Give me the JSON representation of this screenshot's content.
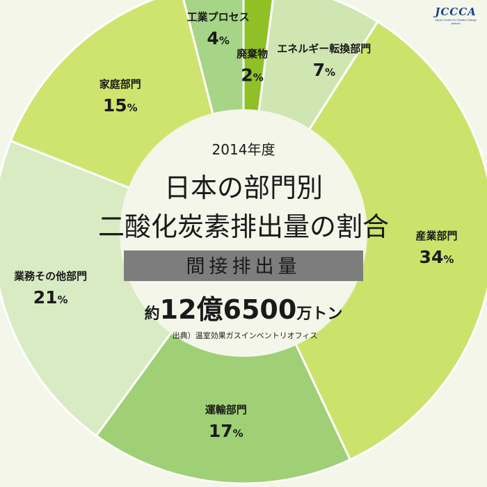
{
  "logo": {
    "mark": "JCCCA",
    "subtitle": "Japan Center for Climate Change Actions"
  },
  "center": {
    "year": "2014年度",
    "title_line1": "日本の部門別",
    "title_line2": "二酸化炭素排出量の割合",
    "band_label": "間接排出量",
    "total_prefix": "約",
    "total_value": "12億6500",
    "total_unit": "万トン",
    "source": "出典）温室効果ガスインベントリオフィス"
  },
  "colors": {
    "background": "#f3f6e9",
    "band": "#7d7d7d",
    "band_text": "#ffffff",
    "separator": "#ffffff"
  },
  "chart_data": {
    "type": "pie",
    "variant": "donut",
    "start": "12 o'clock",
    "direction": "clockwise",
    "unit": "%",
    "slices": [
      {
        "label": "廃棄物",
        "value": 2,
        "color": "#8fc126"
      },
      {
        "label": "エネルギー転換部門",
        "value": 7,
        "color": "#cfe6b2"
      },
      {
        "label": "産業部門",
        "value": 34,
        "color": "#cbe36b"
      },
      {
        "label": "運輸部門",
        "value": 17,
        "color": "#9fd075"
      },
      {
        "label": "業務その他部門",
        "value": 21,
        "color": "#d8ebc3"
      },
      {
        "label": "家庭部門",
        "value": 15,
        "color": "#cfe46e"
      },
      {
        "label": "工業プロセス",
        "value": 4,
        "color": "#a7d587"
      }
    ]
  }
}
